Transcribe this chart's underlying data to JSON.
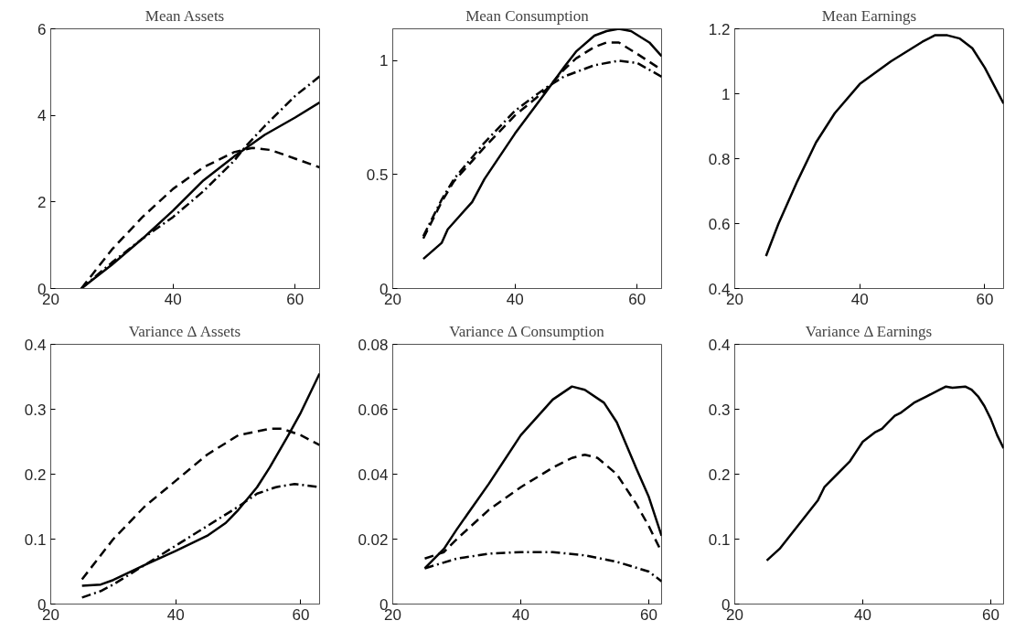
{
  "chart_data": [
    {
      "type": "line",
      "title": "Mean Assets",
      "xlim": [
        20,
        64
      ],
      "xticks": [
        20,
        40,
        60
      ],
      "ylim": [
        0,
        6
      ],
      "yticks": [
        0,
        2,
        4,
        6
      ],
      "grid": false,
      "series": [
        {
          "color": "#000000",
          "line_style": "solid",
          "x": [
            25,
            30,
            35,
            40,
            45,
            50,
            52,
            55,
            60,
            64
          ],
          "values": [
            0,
            0.55,
            1.15,
            1.8,
            2.5,
            3.05,
            3.25,
            3.55,
            3.95,
            4.3
          ]
        },
        {
          "color": "#000000",
          "line_style": "dashed",
          "x": [
            25,
            30,
            35,
            40,
            45,
            50,
            53,
            56,
            60,
            64
          ],
          "values": [
            0,
            0.9,
            1.65,
            2.3,
            2.8,
            3.15,
            3.25,
            3.2,
            3.0,
            2.8
          ]
        },
        {
          "color": "#000000",
          "line_style": "dashdot",
          "x": [
            25,
            30,
            35,
            40,
            45,
            50,
            52,
            55,
            60,
            64
          ],
          "values": [
            0,
            0.6,
            1.15,
            1.65,
            2.25,
            2.95,
            3.3,
            3.75,
            4.45,
            4.9
          ]
        }
      ]
    },
    {
      "type": "line",
      "title": "Mean Consumption",
      "xlim": [
        20,
        64
      ],
      "xticks": [
        20,
        40,
        60
      ],
      "ylim": [
        0,
        1.14
      ],
      "yticks": [
        0,
        0.5,
        1
      ],
      "grid": false,
      "series": [
        {
          "color": "#000000",
          "line_style": "solid",
          "x": [
            25,
            28,
            29,
            30,
            33,
            35,
            40,
            45,
            48,
            50,
            53,
            55,
            57,
            59,
            62,
            64
          ],
          "values": [
            0.13,
            0.2,
            0.26,
            0.29,
            0.38,
            0.48,
            0.68,
            0.86,
            0.97,
            1.04,
            1.11,
            1.13,
            1.14,
            1.13,
            1.08,
            1.02
          ]
        },
        {
          "color": "#000000",
          "line_style": "dashed",
          "x": [
            25,
            28,
            30,
            35,
            40,
            45,
            48,
            50,
            53,
            55,
            57,
            60,
            64
          ],
          "values": [
            0.22,
            0.38,
            0.47,
            0.62,
            0.76,
            0.87,
            0.96,
            1.01,
            1.06,
            1.08,
            1.08,
            1.03,
            0.96
          ]
        },
        {
          "color": "#000000",
          "line_style": "dashdot",
          "x": [
            25,
            28,
            30,
            35,
            40,
            45,
            48,
            50,
            53,
            57,
            60,
            64
          ],
          "values": [
            0.23,
            0.39,
            0.48,
            0.64,
            0.78,
            0.88,
            0.93,
            0.95,
            0.98,
            1.0,
            0.99,
            0.93
          ]
        }
      ]
    },
    {
      "type": "line",
      "title": "Mean Earnings",
      "xlim": [
        20,
        63
      ],
      "xticks": [
        20,
        40,
        60
      ],
      "ylim": [
        0.4,
        1.2
      ],
      "yticks": [
        0.4,
        0.6,
        0.8,
        1,
        1.2
      ],
      "grid": false,
      "series": [
        {
          "color": "#000000",
          "line_style": "solid",
          "x": [
            25,
            27,
            30,
            33,
            36,
            40,
            45,
            50,
            52,
            54,
            56,
            58,
            60,
            63
          ],
          "values": [
            0.5,
            0.6,
            0.73,
            0.85,
            0.94,
            1.03,
            1.1,
            1.16,
            1.18,
            1.18,
            1.17,
            1.14,
            1.08,
            0.97
          ]
        }
      ]
    },
    {
      "type": "line",
      "title": "Variance Δ Assets",
      "xlim": [
        20,
        63
      ],
      "xticks": [
        20,
        40,
        60
      ],
      "ylim": [
        0,
        0.4
      ],
      "yticks": [
        0,
        0.1,
        0.2,
        0.3,
        0.4
      ],
      "grid": false,
      "series": [
        {
          "color": "#000000",
          "line_style": "solid",
          "x": [
            25,
            28,
            30,
            35,
            40,
            45,
            48,
            50,
            53,
            55,
            58,
            60,
            63
          ],
          "values": [
            0.028,
            0.03,
            0.037,
            0.06,
            0.082,
            0.105,
            0.125,
            0.145,
            0.18,
            0.21,
            0.26,
            0.295,
            0.355
          ]
        },
        {
          "color": "#000000",
          "line_style": "dashed",
          "x": [
            25,
            30,
            35,
            40,
            45,
            50,
            55,
            57,
            60,
            63
          ],
          "values": [
            0.038,
            0.1,
            0.15,
            0.19,
            0.23,
            0.26,
            0.27,
            0.27,
            0.26,
            0.245
          ]
        },
        {
          "color": "#000000",
          "line_style": "dashdot",
          "x": [
            25,
            28,
            30,
            35,
            40,
            45,
            50,
            53,
            56,
            59,
            63
          ],
          "values": [
            0.01,
            0.02,
            0.03,
            0.06,
            0.09,
            0.12,
            0.15,
            0.17,
            0.18,
            0.185,
            0.18
          ]
        }
      ]
    },
    {
      "type": "line",
      "title": "Variance Δ Consumption",
      "xlim": [
        20,
        62
      ],
      "xticks": [
        20,
        40,
        60
      ],
      "ylim": [
        0,
        0.08
      ],
      "yticks": [
        0,
        0.02,
        0.04,
        0.06,
        0.08
      ],
      "grid": false,
      "series": [
        {
          "color": "#000000",
          "line_style": "solid",
          "x": [
            25,
            28,
            30,
            35,
            40,
            45,
            48,
            50,
            53,
            55,
            58,
            60,
            62
          ],
          "values": [
            0.011,
            0.017,
            0.023,
            0.037,
            0.052,
            0.063,
            0.067,
            0.066,
            0.062,
            0.056,
            0.042,
            0.033,
            0.021
          ]
        },
        {
          "color": "#000000",
          "line_style": "dashed",
          "x": [
            25,
            28,
            30,
            35,
            40,
            45,
            48,
            50,
            52,
            55,
            58,
            60,
            62
          ],
          "values": [
            0.014,
            0.016,
            0.02,
            0.029,
            0.036,
            0.042,
            0.045,
            0.046,
            0.045,
            0.04,
            0.031,
            0.024,
            0.016
          ]
        },
        {
          "color": "#000000",
          "line_style": "dashdot",
          "x": [
            25,
            30,
            35,
            40,
            45,
            50,
            55,
            60,
            62
          ],
          "values": [
            0.011,
            0.014,
            0.0155,
            0.016,
            0.016,
            0.015,
            0.013,
            0.01,
            0.007
          ]
        }
      ]
    },
    {
      "type": "line",
      "title": "Variance Δ Earnings",
      "xlim": [
        20,
        62
      ],
      "xticks": [
        20,
        40,
        60
      ],
      "ylim": [
        0,
        0.4
      ],
      "yticks": [
        0,
        0.1,
        0.2,
        0.3,
        0.4
      ],
      "grid": false,
      "series": [
        {
          "color": "#000000",
          "line_style": "solid",
          "x": [
            25,
            27,
            29,
            31,
            33,
            34,
            36,
            38,
            39,
            40,
            42,
            43,
            44,
            45,
            46,
            48,
            49,
            50,
            52,
            53,
            54,
            56,
            57,
            58,
            59,
            60,
            61,
            62
          ],
          "values": [
            0.067,
            0.085,
            0.11,
            0.135,
            0.16,
            0.18,
            0.2,
            0.22,
            0.235,
            0.25,
            0.265,
            0.27,
            0.28,
            0.29,
            0.295,
            0.31,
            0.315,
            0.32,
            0.33,
            0.335,
            0.333,
            0.335,
            0.33,
            0.32,
            0.305,
            0.285,
            0.26,
            0.24
          ]
        }
      ]
    }
  ]
}
